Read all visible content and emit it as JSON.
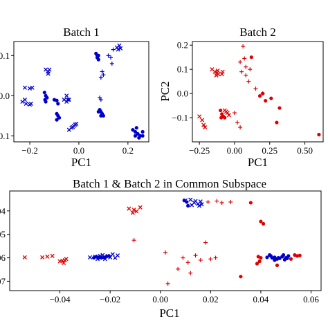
{
  "chart_data": [
    {
      "id": "batch1",
      "type": "scatter",
      "title": "Batch 1",
      "xlabel": "PC1",
      "ylabel": "",
      "xlim": [
        -0.265,
        0.285
      ],
      "ylim": [
        -0.115,
        0.135
      ],
      "grid": false,
      "xticks": [
        {
          "v": -0.2,
          "label": "−0.2"
        },
        {
          "v": 0.0,
          "label": "0.0"
        },
        {
          "v": 0.2,
          "label": "0.2"
        }
      ],
      "yticks": [
        {
          "v": -0.1,
          "label": "0.1"
        },
        {
          "v": 0.0,
          "label": "0.0"
        },
        {
          "v": 0.1,
          "label": "0.1"
        }
      ],
      "series": [
        {
          "batch": 1,
          "marker": "x",
          "color": "#0000cc",
          "points": [
            [
              -0.23,
              -0.015
            ],
            [
              -0.215,
              -0.02
            ],
            [
              -0.2,
              -0.022
            ],
            [
              -0.195,
              -0.02
            ],
            [
              -0.22,
              -0.01
            ],
            [
              -0.22,
              0.02
            ],
            [
              -0.2,
              0.018
            ],
            [
              -0.19,
              0.02
            ],
            [
              -0.135,
              0.065
            ],
            [
              -0.125,
              0.06
            ],
            [
              -0.12,
              0.065
            ],
            [
              -0.125,
              0.055
            ],
            [
              -0.06,
              -0.01
            ],
            [
              -0.05,
              -0.015
            ],
            [
              -0.04,
              -0.01
            ],
            [
              -0.05,
              0.0
            ],
            [
              -0.045,
              -0.01
            ],
            [
              -0.03,
              -0.08
            ],
            [
              -0.02,
              -0.075
            ],
            [
              -0.015,
              -0.072
            ],
            [
              -0.01,
              -0.07
            ],
            [
              -0.025,
              -0.078
            ],
            [
              -0.04,
              -0.085
            ],
            [
              0.155,
              0.12
            ],
            [
              0.165,
              0.125
            ],
            [
              0.17,
              0.118
            ],
            [
              0.16,
              0.115
            ]
          ]
        },
        {
          "batch": 1,
          "marker": "+",
          "color": "#0000cc",
          "points": [
            [
              0.09,
              0.045
            ],
            [
              0.1,
              0.052
            ],
            [
              0.095,
              0.06
            ],
            [
              0.12,
              0.1
            ],
            [
              0.13,
              0.095
            ],
            [
              0.085,
              -0.005
            ],
            [
              0.09,
              -0.01
            ],
            [
              0.14,
              0.115
            ],
            [
              0.135,
              0.08
            ]
          ]
        },
        {
          "batch": 1,
          "marker": "o",
          "color": "#0000cc",
          "points": [
            [
              -0.14,
              0.008
            ],
            [
              -0.135,
              0.0
            ],
            [
              -0.13,
              -0.005
            ],
            [
              -0.138,
              -0.01
            ],
            [
              -0.135,
              -0.015
            ],
            [
              -0.09,
              -0.045
            ],
            [
              -0.085,
              -0.05
            ],
            [
              -0.08,
              -0.055
            ],
            [
              -0.09,
              -0.06
            ],
            [
              -0.1,
              -0.01
            ],
            [
              -0.09,
              -0.012
            ],
            [
              -0.085,
              -0.02
            ],
            [
              0.075,
              0.1
            ],
            [
              0.08,
              0.09
            ],
            [
              0.07,
              0.105
            ],
            [
              0.075,
              0.095
            ],
            [
              0.08,
              0.1
            ],
            [
              0.085,
              -0.035
            ],
            [
              0.09,
              -0.04
            ],
            [
              0.095,
              -0.045
            ],
            [
              0.08,
              -0.04
            ],
            [
              0.1,
              -0.05
            ],
            [
              0.09,
              -0.05
            ],
            [
              0.22,
              -0.085
            ],
            [
              0.23,
              -0.09
            ],
            [
              0.24,
              -0.095
            ],
            [
              0.25,
              -0.1
            ],
            [
              0.26,
              -0.1
            ],
            [
              0.23,
              -0.1
            ],
            [
              0.245,
              -0.105
            ],
            [
              0.26,
              -0.09
            ],
            [
              0.235,
              -0.08
            ]
          ]
        }
      ]
    },
    {
      "id": "batch2",
      "type": "scatter",
      "title": "Batch 2",
      "xlabel": "PC1",
      "ylabel": "PC2",
      "xlim": [
        -0.3,
        0.63
      ],
      "ylim": [
        -0.2,
        0.215
      ],
      "grid": false,
      "xticks": [
        {
          "v": -0.25,
          "label": "−0.25"
        },
        {
          "v": 0.0,
          "label": "0.00"
        },
        {
          "v": 0.25,
          "label": "0.25"
        },
        {
          "v": 0.5,
          "label": "0.50"
        }
      ],
      "yticks": [
        {
          "v": -0.1,
          "label": "−0.1"
        },
        {
          "v": 0.0,
          "label": "0.0"
        },
        {
          "v": 0.1,
          "label": "0.1"
        },
        {
          "v": 0.2,
          "label": "0.2"
        }
      ],
      "series": [
        {
          "batch": 2,
          "marker": "x",
          "color": "#dd0000",
          "points": [
            [
              -0.14,
              0.09
            ],
            [
              -0.125,
              0.085
            ],
            [
              -0.12,
              0.095
            ],
            [
              -0.13,
              0.075
            ],
            [
              -0.115,
              0.08
            ],
            [
              -0.16,
              0.1
            ],
            [
              -0.09,
              0.08
            ],
            [
              -0.085,
              0.09
            ],
            [
              -0.23,
              -0.11
            ],
            [
              -0.22,
              -0.13
            ],
            [
              -0.25,
              -0.095
            ],
            [
              -0.21,
              -0.14
            ],
            [
              -0.07,
              -0.07
            ],
            [
              -0.05,
              -0.08
            ],
            [
              -0.04,
              -0.09
            ],
            [
              -0.06,
              -0.075
            ]
          ]
        },
        {
          "batch": 2,
          "marker": "+",
          "color": "#dd0000",
          "points": [
            [
              0.06,
              0.195
            ],
            [
              0.08,
              0.11
            ],
            [
              0.08,
              0.075
            ],
            [
              0.1,
              0.05
            ],
            [
              0.05,
              0.09
            ],
            [
              0.04,
              0.13
            ],
            [
              0.0,
              -0.08
            ],
            [
              0.02,
              -0.12
            ],
            [
              0.04,
              -0.14
            ],
            [
              0.15,
              0.02
            ],
            [
              0.2,
              0.0
            ],
            [
              0.07,
              0.145
            ],
            [
              0.11,
              0.1
            ]
          ]
        },
        {
          "batch": 2,
          "marker": "o",
          "color": "#dd0000",
          "points": [
            [
              0.12,
              0.15
            ],
            [
              0.18,
              -0.01
            ],
            [
              0.2,
              0.0
            ],
            [
              0.22,
              -0.03
            ],
            [
              0.26,
              -0.02
            ],
            [
              0.3,
              -0.12
            ],
            [
              0.32,
              -0.06
            ],
            [
              0.6,
              -0.17
            ],
            [
              -0.1,
              -0.07
            ],
            [
              -0.09,
              -0.085
            ],
            [
              -0.08,
              -0.095
            ],
            [
              -0.095,
              -0.1
            ],
            [
              -0.07,
              -0.1
            ]
          ]
        }
      ]
    },
    {
      "id": "common",
      "type": "scatter",
      "title": "Batch 1 & Batch 2 in Common Subspace",
      "xlabel": "PC1",
      "ylabel": "",
      "xlim": [
        -0.06,
        0.064
      ],
      "ylim": [
        -0.074,
        -0.0315
      ],
      "grid": false,
      "xticks": [
        {
          "v": -0.04,
          "label": "−0.04"
        },
        {
          "v": -0.02,
          "label": "−0.02"
        },
        {
          "v": 0.0,
          "label": "0.00"
        },
        {
          "v": 0.02,
          "label": "0.02"
        },
        {
          "v": 0.04,
          "label": "0.04"
        },
        {
          "v": 0.06,
          "label": "0.06"
        }
      ],
      "yticks": [
        {
          "v": -0.04,
          "label": ".04"
        },
        {
          "v": -0.05,
          "label": ".05"
        },
        {
          "v": -0.06,
          "label": ".06"
        },
        {
          "v": -0.07,
          "label": ".07"
        }
      ],
      "series": [
        {
          "batch": 1,
          "marker": "x",
          "color": "#0000cc",
          "points": [
            [
              -0.028,
              -0.0598
            ],
            [
              -0.026,
              -0.0595
            ],
            [
              -0.024,
              -0.06
            ],
            [
              -0.022,
              -0.0605
            ],
            [
              -0.02,
              -0.0598
            ],
            [
              -0.018,
              -0.06
            ],
            [
              -0.025,
              -0.0605
            ],
            [
              -0.021,
              -0.0592
            ],
            [
              -0.019,
              -0.0585
            ],
            [
              -0.023,
              -0.0588
            ],
            [
              -0.017,
              -0.059
            ],
            [
              -0.024,
              -0.0592
            ],
            [
              0.01,
              -0.0355
            ],
            [
              0.012,
              -0.0352
            ],
            [
              0.014,
              -0.0358
            ],
            [
              0.016,
              -0.036
            ],
            [
              0.0135,
              -0.0365
            ],
            [
              0.015,
              -0.037
            ],
            [
              0.0165,
              -0.0372
            ],
            [
              0.0125,
              -0.0375
            ],
            [
              0.0155,
              -0.0378
            ]
          ]
        },
        {
          "batch": 1,
          "marker": "o",
          "color": "#0000cc",
          "points": [
            [
              -0.0265,
              -0.06
            ],
            [
              -0.0255,
              -0.0595
            ],
            [
              -0.0245,
              -0.0598
            ],
            [
              -0.0235,
              -0.06
            ],
            [
              -0.0225,
              -0.0598
            ],
            [
              -0.0215,
              -0.0595
            ],
            [
              -0.0205,
              -0.0592
            ],
            [
              0.044,
              -0.0592
            ],
            [
              0.0455,
              -0.0598
            ],
            [
              0.047,
              -0.06
            ],
            [
              0.0485,
              -0.0595
            ],
            [
              0.05,
              -0.06
            ],
            [
              0.0465,
              -0.0605
            ],
            [
              0.0435,
              -0.0588
            ],
            [
              0.0475,
              -0.0602
            ],
            [
              0.049,
              -0.0588
            ],
            [
              0.051,
              -0.0592
            ],
            [
              0.0445,
              -0.06
            ],
            [
              0.0455,
              -0.061
            ],
            [
              0.0495,
              -0.0608
            ],
            [
              0.0425,
              -0.0598
            ],
            [
              0.0505,
              -0.0602
            ],
            [
              0.0095,
              -0.0355
            ],
            [
              0.0105,
              -0.0362
            ],
            [
              0.011,
              -0.0378
            ]
          ]
        },
        {
          "batch": 2,
          "marker": "x",
          "color": "#dd0000",
          "points": [
            [
              -0.054,
              -0.0598
            ],
            [
              -0.047,
              -0.0598
            ],
            [
              -0.045,
              -0.0595
            ],
            [
              -0.043,
              -0.0592
            ],
            [
              -0.04,
              -0.0615
            ],
            [
              -0.039,
              -0.0612
            ],
            [
              -0.038,
              -0.061
            ],
            [
              -0.0375,
              -0.0605
            ],
            [
              -0.0385,
              -0.0622
            ],
            [
              -0.0125,
              -0.039
            ],
            [
              -0.0105,
              -0.0395
            ],
            [
              -0.0095,
              -0.0402
            ],
            [
              -0.008,
              -0.0385
            ],
            [
              -0.011,
              -0.0408
            ]
          ]
        },
        {
          "batch": 2,
          "marker": "+",
          "color": "#dd0000",
          "points": [
            [
              -0.0105,
              -0.0525
            ],
            [
              0.002,
              -0.0577
            ],
            [
              0.003,
              -0.071
            ],
            [
              0.007,
              -0.0648
            ],
            [
              0.009,
              -0.06
            ],
            [
              0.011,
              -0.062
            ],
            [
              0.012,
              -0.0665
            ],
            [
              0.014,
              -0.059
            ],
            [
              0.016,
              -0.061
            ],
            [
              0.018,
              -0.0535
            ],
            [
              0.02,
              -0.0605
            ],
            [
              0.022,
              -0.06
            ],
            [
              0.019,
              -0.0362
            ],
            [
              0.0225,
              -0.0358
            ],
            [
              0.0245,
              -0.0365
            ],
            [
              0.028,
              -0.0362
            ]
          ]
        },
        {
          "batch": 2,
          "marker": "o",
          "color": "#dd0000",
          "points": [
            [
              0.032,
              -0.068
            ],
            [
              0.036,
              -0.0365
            ],
            [
              0.04,
              -0.0445
            ],
            [
              0.041,
              -0.0455
            ],
            [
              0.04,
              -0.06
            ],
            [
              0.039,
              -0.0595
            ],
            [
              0.0395,
              -0.0615
            ],
            [
              0.0385,
              -0.0625
            ],
            [
              0.0535,
              -0.0588
            ],
            [
              0.0545,
              -0.0592
            ],
            [
              0.0555,
              -0.059
            ],
            [
              0.052,
              -0.0605
            ],
            [
              0.0465,
              -0.0632
            ]
          ]
        }
      ]
    }
  ]
}
